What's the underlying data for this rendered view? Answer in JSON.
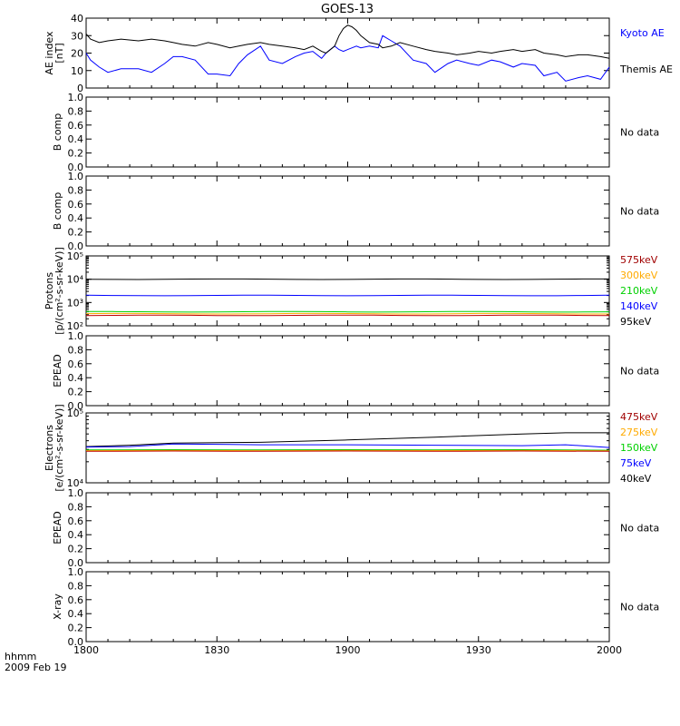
{
  "title": "GOES-13",
  "footer": {
    "line1": "hhmm",
    "line2": "2009 Feb 19"
  },
  "x_ticks": [
    "1800",
    "1830",
    "1900",
    "1930",
    "2000"
  ],
  "x_values": [
    0,
    30,
    60,
    90,
    120
  ],
  "colors": {
    "axis": "#000000",
    "black": "#000000",
    "blue": "#0000ff",
    "green": "#00d000",
    "orange": "#ffaa00",
    "red": "#c00000",
    "darkred": "#a00000"
  },
  "chart_data": [
    {
      "type": "line",
      "ylabel": "AE index [nT]",
      "ylim": [
        0,
        40
      ],
      "yticks": [
        "0",
        "10",
        "20",
        "30",
        "40"
      ],
      "ytick_values": [
        0,
        10,
        20,
        30,
        40
      ],
      "x_minutes": [
        0,
        1,
        3,
        5,
        8,
        12,
        15,
        18,
        20,
        22,
        25,
        28,
        30,
        33,
        35,
        37,
        40,
        42,
        45,
        48,
        50,
        52,
        54,
        55,
        57,
        58,
        59,
        60,
        61,
        62,
        63,
        65,
        67,
        68,
        70,
        72,
        75,
        78,
        80,
        83,
        85,
        88,
        90,
        93,
        95,
        98,
        100,
        103,
        105,
        108,
        110,
        113,
        115,
        118,
        120
      ],
      "series": [
        {
          "name": "Kyoto AE",
          "color": "#0000ff",
          "values": [
            20,
            16,
            12,
            9,
            11,
            11,
            9,
            14,
            18,
            18,
            16,
            8,
            8,
            7,
            14,
            19,
            24,
            16,
            14,
            18,
            20,
            21,
            17,
            20,
            24,
            22,
            21,
            22,
            23,
            24,
            23,
            24,
            23,
            30,
            27,
            24,
            16,
            14,
            9,
            14,
            16,
            14,
            13,
            16,
            15,
            12,
            14,
            13,
            7,
            9,
            4,
            6,
            7,
            5,
            12
          ]
        },
        {
          "name": "Themis AE",
          "color": "#000000",
          "values": [
            31,
            28,
            26,
            27,
            28,
            27,
            28,
            27,
            26,
            25,
            24,
            26,
            25,
            23,
            24,
            25,
            26,
            25,
            24,
            23,
            22,
            24,
            21,
            20,
            24,
            30,
            34,
            36,
            35,
            33,
            30,
            26,
            25,
            23,
            24,
            26,
            24,
            22,
            21,
            20,
            19,
            20,
            21,
            20,
            21,
            22,
            21,
            22,
            20,
            19,
            18,
            19,
            19,
            18,
            17
          ]
        }
      ],
      "legend": [
        {
          "label": "Kyoto AE",
          "color": "#0000ff"
        },
        {
          "label": "Themis AE",
          "color": "#000000"
        }
      ]
    },
    {
      "type": "line",
      "ylabel": "B comp",
      "ylim": [
        0,
        1
      ],
      "yticks": [
        "0.0",
        "0.2",
        "0.4",
        "0.6",
        "0.8",
        "1.0"
      ],
      "ytick_values": [
        0,
        0.2,
        0.4,
        0.6,
        0.8,
        1.0
      ],
      "series": [],
      "note": "No data"
    },
    {
      "type": "line",
      "ylabel": "B comp",
      "ylim": [
        0,
        1
      ],
      "yticks": [
        "0.0",
        "0.2",
        "0.4",
        "0.6",
        "0.8",
        "1.0"
      ],
      "ytick_values": [
        0,
        0.2,
        0.4,
        0.6,
        0.8,
        1.0
      ],
      "series": [],
      "note": "No data"
    },
    {
      "type": "line",
      "ylabel": "Protons [p/(cm²-s-sr-keV)]",
      "log": true,
      "ylim": [
        100,
        100000
      ],
      "yticks": [
        "10²",
        "10³",
        "10⁴",
        "10⁵"
      ],
      "ytick_values": [
        100,
        1000,
        10000,
        100000
      ],
      "series": [
        {
          "name": "95keV",
          "color": "#000000",
          "constant": 10000
        },
        {
          "name": "140keV",
          "color": "#0000ff",
          "constant": 2000
        },
        {
          "name": "210keV",
          "color": "#00d000",
          "constant": 400
        },
        {
          "name": "300keV",
          "color": "#ffaa00",
          "constant": 330
        },
        {
          "name": "575keV",
          "color": "#c00000",
          "constant": 280
        }
      ],
      "legend": [
        {
          "label": "575keV",
          "color": "#a00000"
        },
        {
          "label": "300keV",
          "color": "#ffaa00"
        },
        {
          "label": "210keV",
          "color": "#00d000"
        },
        {
          "label": "140keV",
          "color": "#0000ff"
        },
        {
          "label": "95keV",
          "color": "#000000"
        }
      ]
    },
    {
      "type": "line",
      "ylabel": "EPEAD",
      "ylim": [
        0,
        1
      ],
      "yticks": [
        "0.0",
        "0.2",
        "0.4",
        "0.6",
        "0.8",
        "1.0"
      ],
      "ytick_values": [
        0,
        0.2,
        0.4,
        0.6,
        0.8,
        1.0
      ],
      "series": [],
      "note": "No data"
    },
    {
      "type": "line",
      "ylabel": "Electrons [e/(cm²-s-sr-keV)]",
      "log": true,
      "ylim": [
        10000,
        100000
      ],
      "yticks": [
        "10⁴",
        "10⁵"
      ],
      "ytick_values": [
        10000,
        100000
      ],
      "series": [
        {
          "name": "40keV",
          "color": "#000000",
          "x": [
            0,
            10,
            20,
            40,
            60,
            80,
            100,
            110,
            120
          ],
          "values": [
            33000,
            34500,
            37000,
            38000,
            41000,
            45000,
            50000,
            52000,
            52000
          ]
        },
        {
          "name": "75keV",
          "color": "#0000ff",
          "x": [
            0,
            10,
            20,
            40,
            60,
            80,
            100,
            110,
            120
          ],
          "values": [
            32500,
            33000,
            36000,
            35000,
            35000,
            34500,
            34000,
            35000,
            32000
          ]
        },
        {
          "name": "150keV",
          "color": "#00d000",
          "x": [
            0,
            20,
            40,
            60,
            80,
            100,
            120
          ],
          "values": [
            29500,
            29800,
            29500,
            29800,
            29600,
            29800,
            29300
          ]
        },
        {
          "name": "275keV",
          "color": "#ffaa00",
          "x": [
            0,
            20,
            40,
            60,
            80,
            100,
            120
          ],
          "values": [
            28800,
            29000,
            28800,
            29000,
            28900,
            29000,
            28700
          ]
        },
        {
          "name": "475keV",
          "color": "#c00000",
          "x": [
            0,
            20,
            40,
            60,
            80,
            100,
            120
          ],
          "values": [
            28200,
            28500,
            28200,
            28500,
            28200,
            28500,
            28200
          ]
        }
      ],
      "legend": [
        {
          "label": "475keV",
          "color": "#a00000"
        },
        {
          "label": "275keV",
          "color": "#ffaa00"
        },
        {
          "label": "150keV",
          "color": "#00d000"
        },
        {
          "label": "75keV",
          "color": "#0000ff"
        },
        {
          "label": "40keV",
          "color": "#000000"
        }
      ]
    },
    {
      "type": "line",
      "ylabel": "EPEAD",
      "ylim": [
        0,
        1
      ],
      "yticks": [
        "0.0",
        "0.2",
        "0.4",
        "0.6",
        "0.8",
        "1.0"
      ],
      "ytick_values": [
        0,
        0.2,
        0.4,
        0.6,
        0.8,
        1.0
      ],
      "series": [],
      "note": "No data"
    },
    {
      "type": "line",
      "ylabel": "X-ray",
      "ylim": [
        0,
        1
      ],
      "yticks": [
        "0.0",
        "0.2",
        "0.4",
        "0.6",
        "0.8",
        "1.0"
      ],
      "ytick_values": [
        0,
        0.2,
        0.4,
        0.6,
        0.8,
        1.0
      ],
      "series": [],
      "note": "No data"
    }
  ]
}
